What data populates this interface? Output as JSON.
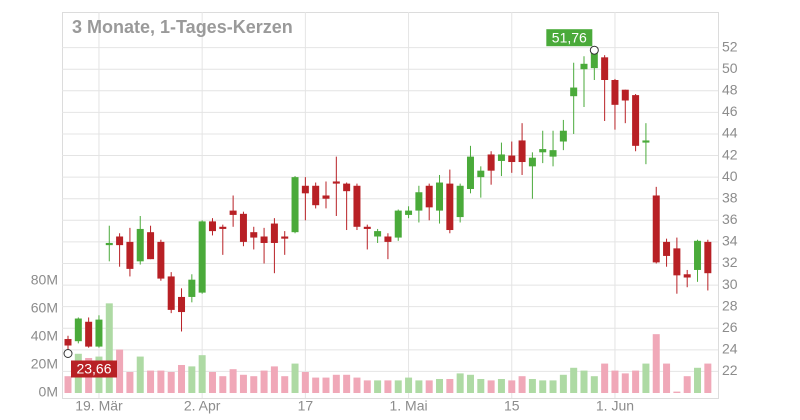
{
  "chart_data": {
    "type": "candlestick",
    "title": "3 Monate, 1-Tages-Kerzen",
    "categories": [
      null,
      null,
      null,
      "19. Mär",
      null,
      null,
      null,
      null,
      null,
      null,
      null,
      null,
      null,
      "2. Apr",
      null,
      null,
      null,
      null,
      null,
      null,
      null,
      null,
      null,
      "17",
      null,
      null,
      null,
      null,
      null,
      null,
      null,
      null,
      null,
      "1. Mai",
      null,
      null,
      null,
      null,
      null,
      null,
      null,
      null,
      null,
      "15",
      null,
      null,
      null,
      null,
      null,
      null,
      null,
      null,
      null,
      "1. Jun",
      null,
      null,
      null,
      null,
      null,
      null,
      null,
      null,
      null
    ],
    "series": [
      {
        "name": "open",
        "values": [
          25.0,
          24.8,
          26.6,
          24.3,
          33.7,
          34.5,
          34.0,
          32.2,
          34.9,
          34.0,
          30.8,
          28.9,
          28.9,
          29.3,
          35.9,
          35.4,
          36.9,
          36.6,
          34.9,
          34.5,
          35.7,
          34.5,
          34.9,
          39.2,
          39.2,
          38.3,
          39.6,
          39.4,
          39.2,
          35.4,
          34.5,
          34.5,
          34.4,
          36.5,
          36.9,
          39.2,
          36.9,
          39.4,
          36.3,
          38.9,
          40.0,
          42.1,
          41.5,
          42.0,
          43.4,
          41.0,
          42.3,
          41.9,
          43.3,
          47.5,
          50.0,
          50.1,
          51.1,
          49.0,
          48.1,
          47.6,
          43.2,
          38.3,
          34.0,
          33.4,
          31.0,
          31.4,
          34.0
        ]
      },
      {
        "name": "high",
        "values": [
          25.3,
          27.0,
          27.0,
          27.2,
          35.5,
          34.8,
          35.3,
          36.4,
          35.5,
          34.2,
          31.2,
          29.7,
          31.0,
          36.0,
          36.2,
          35.6,
          38.3,
          36.8,
          35.4,
          35.3,
          36.2,
          35.0,
          40.1,
          40.0,
          39.5,
          39.6,
          41.9,
          39.5,
          39.4,
          35.6,
          35.2,
          34.8,
          37.0,
          37.3,
          39.2,
          39.4,
          40.2,
          40.7,
          39.4,
          42.9,
          41.0,
          42.4,
          43.2,
          43.3,
          45.0,
          42.3,
          44.3,
          44.3,
          45.3,
          50.6,
          51.2,
          51.76,
          51.3,
          49.1,
          48.1,
          47.7,
          45.0,
          39.1,
          34.3,
          34.4,
          31.4,
          34.2,
          34.2
        ]
      },
      {
        "name": "low",
        "values": [
          23.66,
          24.6,
          24.2,
          24.2,
          32.2,
          31.7,
          30.8,
          31.9,
          32.4,
          30.4,
          27.4,
          25.7,
          28.4,
          29.2,
          34.6,
          32.8,
          35.4,
          33.6,
          33.3,
          32.0,
          31.1,
          32.8,
          34.8,
          36.0,
          37.1,
          37.1,
          36.4,
          35.1,
          35.1,
          33.3,
          33.9,
          32.4,
          34.1,
          36.2,
          35.8,
          36.0,
          35.7,
          34.8,
          35.8,
          38.5,
          38.1,
          39.3,
          40.1,
          40.4,
          40.2,
          38.0,
          41.3,
          41.0,
          42.5,
          44.0,
          46.5,
          49.0,
          45.2,
          44.4,
          45.0,
          42.4,
          41.2,
          32.0,
          31.7,
          29.2,
          29.8,
          30.3,
          29.5
        ]
      },
      {
        "name": "close",
        "values": [
          24.4,
          26.9,
          24.3,
          26.8,
          33.9,
          33.7,
          31.5,
          35.2,
          32.4,
          30.6,
          27.7,
          27.5,
          30.5,
          35.9,
          35.0,
          35.2,
          36.5,
          34.0,
          34.4,
          33.9,
          33.9,
          34.3,
          40.0,
          38.5,
          37.4,
          38.0,
          39.4,
          38.7,
          35.4,
          35.2,
          35.0,
          34.0,
          36.9,
          36.9,
          38.6,
          37.2,
          39.5,
          35.1,
          39.2,
          41.9,
          40.6,
          40.6,
          42.1,
          41.4,
          41.4,
          41.8,
          42.6,
          42.5,
          44.3,
          48.3,
          50.5,
          51.5,
          49.0,
          46.7,
          47.1,
          42.9,
          43.4,
          32.1,
          32.7,
          30.9,
          30.7,
          34.1,
          31.1
        ]
      },
      {
        "name": "volume",
        "axis": "y2",
        "values": [
          12,
          28,
          25,
          26,
          64,
          31,
          15,
          26,
          16,
          16,
          15,
          20,
          19,
          27,
          15,
          12,
          17,
          13,
          12,
          16,
          19,
          12,
          21,
          15,
          11,
          11,
          13,
          13,
          11,
          9,
          9,
          9,
          9,
          11,
          9,
          9,
          10,
          10,
          14,
          13,
          10,
          9,
          10,
          9,
          12,
          10,
          9,
          9,
          13,
          18,
          16,
          12,
          21,
          16,
          14,
          16,
          21,
          42,
          21,
          1,
          12,
          18,
          21
        ]
      }
    ],
    "up_color": "#4aaa3a",
    "down_color": "#b82025",
    "volume_up_color": "#aedaa4",
    "volume_down_color": "#f0a8b8",
    "ylim": [
      20,
      55.3
    ],
    "yticks": [
      22,
      24,
      26,
      28,
      30,
      32,
      34,
      36,
      38,
      40,
      42,
      44,
      46,
      48,
      50,
      52
    ],
    "y2lim": [
      0,
      272
    ],
    "y2ticks": [
      {
        "value": 0,
        "label": "0M"
      },
      {
        "value": 20,
        "label": "20M"
      },
      {
        "value": 40,
        "label": "40M"
      },
      {
        "value": 60,
        "label": "60M"
      },
      {
        "value": 80,
        "label": "80M"
      }
    ],
    "annotations": [
      {
        "text": "51,76",
        "value": 51.76
      },
      {
        "text": "23,66",
        "value": 23.66
      }
    ],
    "grid": true
  }
}
